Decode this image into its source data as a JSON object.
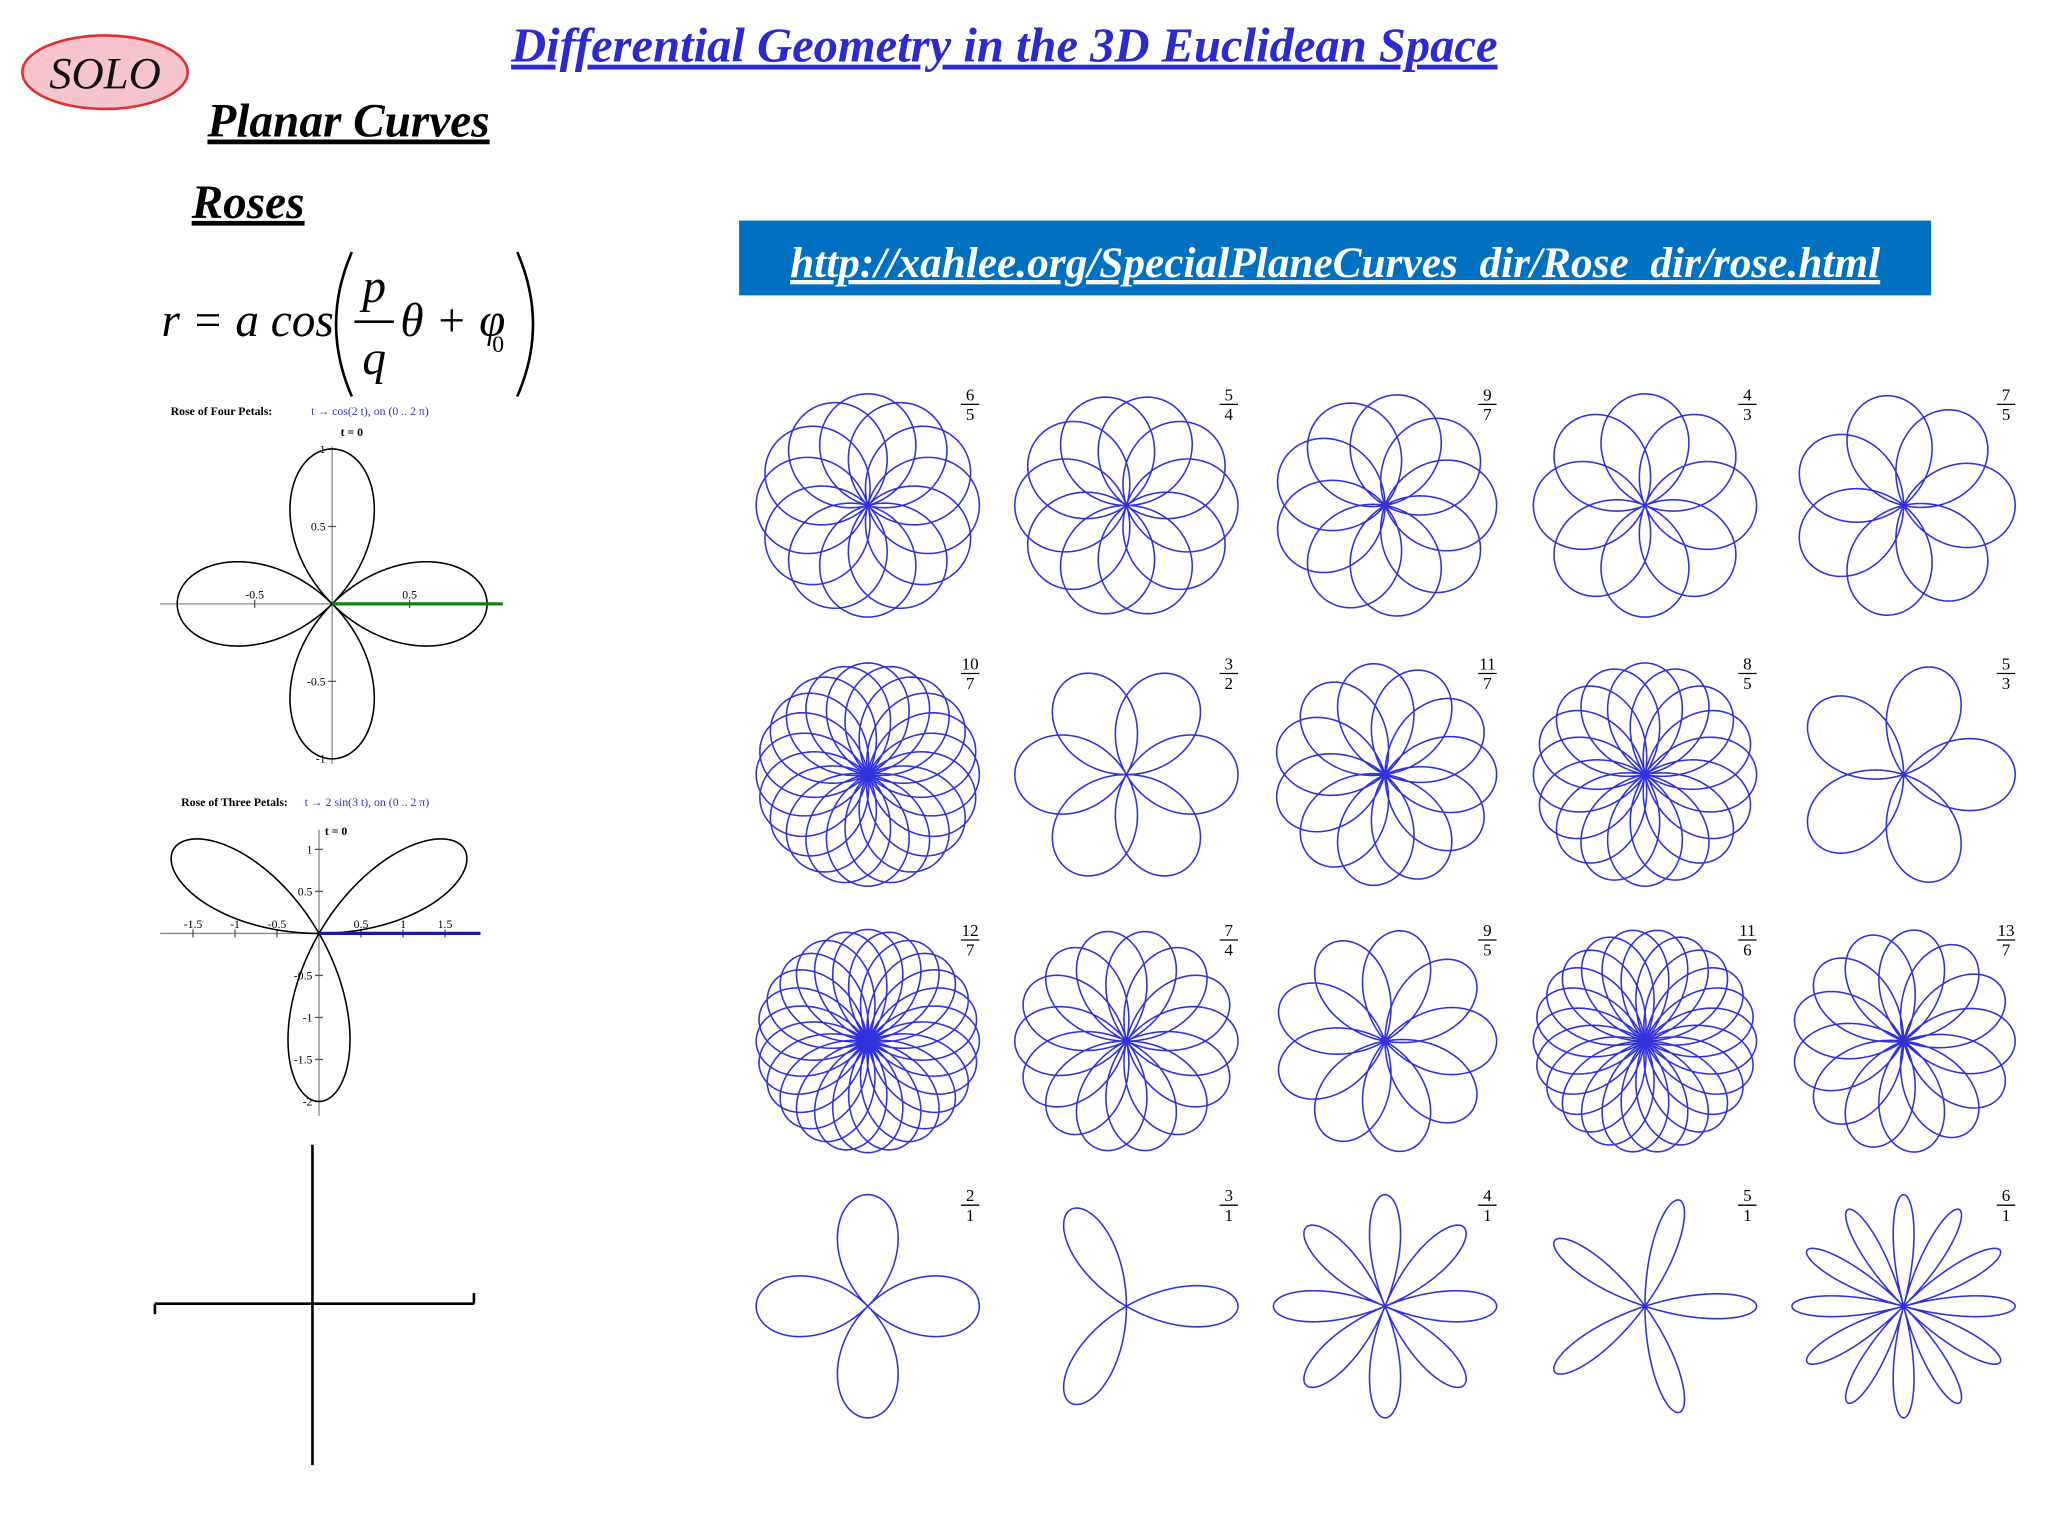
{
  "header": {
    "logo": "SOLO",
    "title": "Differential Geometry in the 3D Euclidean Space",
    "section": "Planar Curves",
    "subsection": "Roses"
  },
  "formula": {
    "lhs": "r = a cos",
    "num": "p",
    "den": "q",
    "rest": "θ + φ",
    "sub": "0"
  },
  "link": "http://xahlee.org/SpecialPlaneCurves_dir/Rose_dir/rose.html",
  "plots": [
    {
      "title": "Rose of Four Petals:",
      "expr": "t → cos(2 t),   on   (0 .. 2 π)",
      "start": "t = 0",
      "xticks": [
        -0.5,
        0.5
      ],
      "yticks": [
        1,
        0.5,
        -0.5,
        -1
      ]
    },
    {
      "title": "Rose of Three Petals:",
      "expr": "t → 2 sin(3 t),   on   (0 .. 2 π)",
      "start": "t = 0",
      "xticks": [
        -1.5,
        -1,
        -0.5,
        0.5,
        1,
        1.5
      ],
      "yticks": [
        1,
        0.5,
        -0.5,
        -1,
        -1.5,
        -2
      ]
    }
  ],
  "roses": [
    {
      "p": 6,
      "q": 5
    },
    {
      "p": 5,
      "q": 4
    },
    {
      "p": 9,
      "q": 7
    },
    {
      "p": 4,
      "q": 3
    },
    {
      "p": 7,
      "q": 5
    },
    {
      "p": 10,
      "q": 7
    },
    {
      "p": 3,
      "q": 2
    },
    {
      "p": 11,
      "q": 7
    },
    {
      "p": 8,
      "q": 5
    },
    {
      "p": 5,
      "q": 3
    },
    {
      "p": 12,
      "q": 7
    },
    {
      "p": 7,
      "q": 4
    },
    {
      "p": 9,
      "q": 5
    },
    {
      "p": 11,
      "q": 6
    },
    {
      "p": 13,
      "q": 7
    },
    {
      "p": 2,
      "q": 1
    },
    {
      "p": 3,
      "q": 1
    },
    {
      "p": 4,
      "q": 1
    },
    {
      "p": 5,
      "q": 1
    },
    {
      "p": 6,
      "q": 1
    }
  ]
}
